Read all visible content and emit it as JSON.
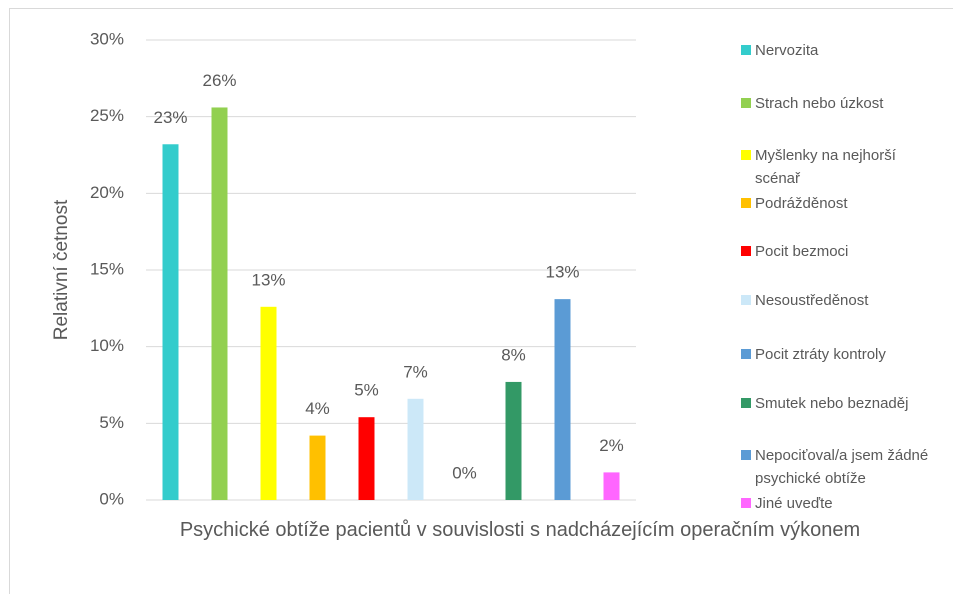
{
  "chart_data": {
    "type": "bar",
    "y_label": "Relativní četnost",
    "categories": [
      "Psychické obtíže pacientů v souvislosti s nadcházejícím operačním výkonem"
    ],
    "series": [
      {
        "name": "Nervozita",
        "color": "#33CCCC",
        "values": [
          23.2
        ],
        "value_labels": [
          "23%"
        ]
      },
      {
        "name": "Strach nebo úzkost",
        "color": "#92D050",
        "values": [
          25.6
        ],
        "value_labels": [
          "26%"
        ]
      },
      {
        "name": "Myšlenky na nejhorší scénař",
        "color": "#FFFF00",
        "values": [
          12.6
        ],
        "value_labels": [
          "13%"
        ]
      },
      {
        "name": "Podrážděnost",
        "color": "#FFC000",
        "values": [
          4.2
        ],
        "value_labels": [
          "4%"
        ]
      },
      {
        "name": "Pocit bezmoci",
        "color": "#FF0000",
        "values": [
          5.4
        ],
        "value_labels": [
          "5%"
        ]
      },
      {
        "name": "Nesoustředěnost",
        "color": "#CCE8F8",
        "values": [
          6.6
        ],
        "value_labels": [
          "7%"
        ]
      },
      {
        "name": "Pocit ztráty kontroly",
        "color": "#5B9BD5",
        "values": [
          0
        ],
        "value_labels": [
          "0%"
        ]
      },
      {
        "name": "Smutek nebo beznaděj",
        "color": "#339966",
        "values": [
          7.7
        ],
        "value_labels": [
          "8%"
        ]
      },
      {
        "name": "Nepociťoval/a jsem žádné psychické obtíže",
        "color": "#5B9BD5",
        "values": [
          13.1
        ],
        "value_labels": [
          "13%"
        ]
      },
      {
        "name": "Jiné uveďte",
        "color": "#FF66FF",
        "values": [
          1.8
        ],
        "value_labels": [
          "2%"
        ]
      }
    ],
    "ylim": [
      0,
      30
    ],
    "yticks": [
      {
        "value": 0,
        "label": "0%"
      },
      {
        "value": 5,
        "label": "5%"
      },
      {
        "value": 10,
        "label": "10%"
      },
      {
        "value": 15,
        "label": "15%"
      },
      {
        "value": 20,
        "label": "20%"
      },
      {
        "value": 25,
        "label": "25%"
      },
      {
        "value": 30,
        "label": "30%"
      }
    ],
    "grid": true
  }
}
